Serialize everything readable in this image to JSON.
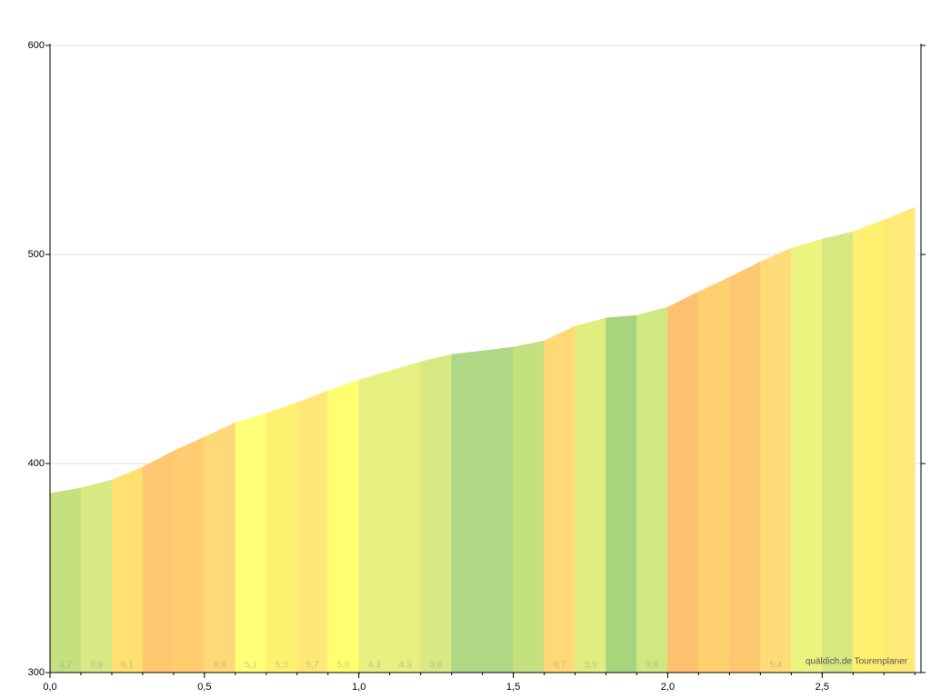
{
  "chart_data": {
    "type": "area",
    "x": [
      0.0,
      0.1,
      0.2,
      0.3,
      0.4,
      0.5,
      0.6,
      0.7,
      0.8,
      0.9,
      1.0,
      1.1,
      1.2,
      1.3,
      1.4,
      1.5,
      1.6,
      1.7,
      1.8,
      1.9,
      2.0,
      2.1,
      2.2,
      2.3,
      2.4,
      2.5,
      2.6,
      2.7,
      2.8
    ],
    "y": [
      385.7,
      388.3,
      392.2,
      398.3,
      406,
      412.6,
      419.6,
      424,
      429.1,
      434.8,
      440,
      444.3,
      448.7,
      452.2,
      453.9,
      455.7,
      458.7,
      465.7,
      469.6,
      470.9,
      474.8,
      482.2,
      489.1,
      496.5,
      503,
      507.4,
      510.9,
      516.5,
      522.6
    ],
    "segment_colors": [
      "#c5e07f",
      "#d8e883",
      "#ffe070",
      "#ffc870",
      "#ffcc70",
      "#ffd878",
      "#ffff78",
      "#fff270",
      "#ffe878",
      "#ffff70",
      "#e6f080",
      "#e6f080",
      "#d8e883",
      "#aed786",
      "#aed786",
      "#c5e07f",
      "#ffd878",
      "#e0ee80",
      "#a8d47e",
      "#d0e880",
      "#ffc070",
      "#ffd070",
      "#ffc870",
      "#ffdc78",
      "#ecf480",
      "#d6e880",
      "#fff070",
      "#ffea78"
    ],
    "grades": [
      3.7,
      3.9,
      6.1,
      null,
      null,
      6.8,
      5.1,
      5.3,
      5.7,
      5.0,
      4.3,
      4.3,
      3.6,
      null,
      null,
      null,
      6.7,
      3.9,
      null,
      3.6,
      null,
      null,
      null,
      5.4,
      null,
      null,
      null,
      null
    ],
    "grade_labels": [
      "3,7",
      "3,9",
      "6,1",
      null,
      null,
      "6,8",
      "5,1",
      "5,3",
      "5,7",
      "5,0",
      "4,3",
      "4,3",
      "3,6",
      null,
      null,
      null,
      "6,7",
      "3,9",
      null,
      "3,6",
      null,
      null,
      null,
      "5,4",
      null,
      null,
      null,
      null
    ],
    "xlim": [
      0,
      2.82
    ],
    "xticks": [
      {
        "value": 0,
        "label": "0,0"
      },
      {
        "value": 0.5,
        "label": "0,5"
      },
      {
        "value": 1,
        "label": "1,0"
      },
      {
        "value": 1.5,
        "label": "1,5"
      },
      {
        "value": 2,
        "label": "2,0"
      },
      {
        "value": 2.5,
        "label": "2,5"
      }
    ],
    "ylim": [
      300,
      600
    ],
    "yticks": [
      300,
      400,
      500,
      600
    ],
    "grid": true,
    "attribution": "quäldich.de Tourenplaner"
  }
}
